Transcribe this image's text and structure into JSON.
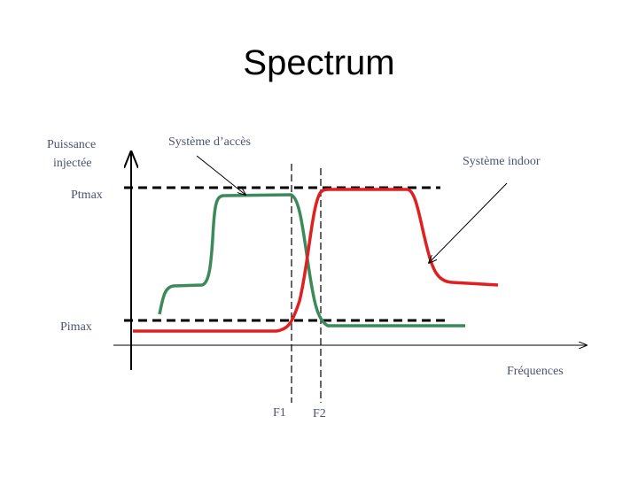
{
  "title": "Spectrum",
  "diagram": {
    "y_axis_label": [
      "Puissance",
      "injectée"
    ],
    "x_axis_label": "Fréquences",
    "levels": [
      "Ptmax",
      "Pimax"
    ],
    "frequencies": [
      "F1",
      "F2"
    ],
    "curves": [
      "Système d’accès",
      "Système indoor"
    ]
  }
}
